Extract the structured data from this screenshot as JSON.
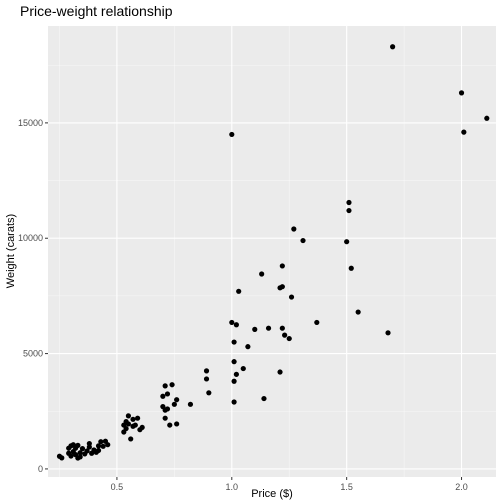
{
  "chart_data": {
    "type": "scatter",
    "title": "Price-weight relationship",
    "xlabel": "Price ($)",
    "ylabel": "Weight (carats)",
    "xlim": [
      0.2,
      2.15
    ],
    "ylim": [
      -350,
      19200
    ],
    "x_ticks": [
      0.5,
      1.0,
      1.5,
      2.0
    ],
    "x_tick_labels": [
      "0.5",
      "1.0",
      "1.5",
      "2.0"
    ],
    "y_ticks": [
      0,
      5000,
      10000,
      15000
    ],
    "y_tick_labels": [
      "0",
      "5000",
      "10000",
      "15000"
    ],
    "grid": true,
    "legend": "none",
    "colors": {
      "panel": "#ebebeb",
      "grid_major": "#ffffff",
      "point": "#000000",
      "tick": "#333333"
    },
    "points": [
      {
        "x": 0.25,
        "y": 550
      },
      {
        "x": 0.26,
        "y": 480
      },
      {
        "x": 0.29,
        "y": 900
      },
      {
        "x": 0.29,
        "y": 680
      },
      {
        "x": 0.3,
        "y": 1000
      },
      {
        "x": 0.3,
        "y": 560
      },
      {
        "x": 0.31,
        "y": 750
      },
      {
        "x": 0.31,
        "y": 1050
      },
      {
        "x": 0.32,
        "y": 620
      },
      {
        "x": 0.32,
        "y": 900
      },
      {
        "x": 0.33,
        "y": 470
      },
      {
        "x": 0.33,
        "y": 1020
      },
      {
        "x": 0.34,
        "y": 700
      },
      {
        "x": 0.34,
        "y": 520
      },
      {
        "x": 0.35,
        "y": 880
      },
      {
        "x": 0.36,
        "y": 650
      },
      {
        "x": 0.37,
        "y": 780
      },
      {
        "x": 0.38,
        "y": 1100
      },
      {
        "x": 0.38,
        "y": 950
      },
      {
        "x": 0.39,
        "y": 680
      },
      {
        "x": 0.4,
        "y": 820
      },
      {
        "x": 0.41,
        "y": 720
      },
      {
        "x": 0.42,
        "y": 1000
      },
      {
        "x": 0.42,
        "y": 800
      },
      {
        "x": 0.43,
        "y": 1180
      },
      {
        "x": 0.44,
        "y": 980
      },
      {
        "x": 0.45,
        "y": 1200
      },
      {
        "x": 0.46,
        "y": 1050
      },
      {
        "x": 0.53,
        "y": 1900
      },
      {
        "x": 0.53,
        "y": 1600
      },
      {
        "x": 0.54,
        "y": 2050
      },
      {
        "x": 0.54,
        "y": 1750
      },
      {
        "x": 0.55,
        "y": 2300
      },
      {
        "x": 0.55,
        "y": 1950
      },
      {
        "x": 0.56,
        "y": 1300
      },
      {
        "x": 0.57,
        "y": 2150
      },
      {
        "x": 0.57,
        "y": 1850
      },
      {
        "x": 0.58,
        "y": 1900
      },
      {
        "x": 0.59,
        "y": 2200
      },
      {
        "x": 0.6,
        "y": 1700
      },
      {
        "x": 0.61,
        "y": 1800
      },
      {
        "x": 0.7,
        "y": 3150
      },
      {
        "x": 0.7,
        "y": 2700
      },
      {
        "x": 0.71,
        "y": 2550
      },
      {
        "x": 0.71,
        "y": 2200
      },
      {
        "x": 0.71,
        "y": 3600
      },
      {
        "x": 0.72,
        "y": 3250
      },
      {
        "x": 0.72,
        "y": 2600
      },
      {
        "x": 0.73,
        "y": 1900
      },
      {
        "x": 0.74,
        "y": 3650
      },
      {
        "x": 0.75,
        "y": 2800
      },
      {
        "x": 0.76,
        "y": 3000
      },
      {
        "x": 0.76,
        "y": 1950
      },
      {
        "x": 0.82,
        "y": 2800
      },
      {
        "x": 0.89,
        "y": 4250
      },
      {
        "x": 0.89,
        "y": 3900
      },
      {
        "x": 0.9,
        "y": 3300
      },
      {
        "x": 1.0,
        "y": 14500
      },
      {
        "x": 1.0,
        "y": 6350
      },
      {
        "x": 1.01,
        "y": 5500
      },
      {
        "x": 1.01,
        "y": 4650
      },
      {
        "x": 1.01,
        "y": 3800
      },
      {
        "x": 1.01,
        "y": 2900
      },
      {
        "x": 1.02,
        "y": 6250
      },
      {
        "x": 1.02,
        "y": 4100
      },
      {
        "x": 1.03,
        "y": 7700
      },
      {
        "x": 1.05,
        "y": 4350
      },
      {
        "x": 1.07,
        "y": 5300
      },
      {
        "x": 1.1,
        "y": 6050
      },
      {
        "x": 1.13,
        "y": 8450
      },
      {
        "x": 1.14,
        "y": 3050
      },
      {
        "x": 1.16,
        "y": 6100
      },
      {
        "x": 1.21,
        "y": 7850
      },
      {
        "x": 1.21,
        "y": 4200
      },
      {
        "x": 1.22,
        "y": 8800
      },
      {
        "x": 1.22,
        "y": 6100
      },
      {
        "x": 1.22,
        "y": 7900
      },
      {
        "x": 1.23,
        "y": 5800
      },
      {
        "x": 1.25,
        "y": 5650
      },
      {
        "x": 1.26,
        "y": 7450
      },
      {
        "x": 1.27,
        "y": 10400
      },
      {
        "x": 1.31,
        "y": 9900
      },
      {
        "x": 1.37,
        "y": 6350
      },
      {
        "x": 1.5,
        "y": 9850
      },
      {
        "x": 1.51,
        "y": 11550
      },
      {
        "x": 1.51,
        "y": 11200
      },
      {
        "x": 1.52,
        "y": 8700
      },
      {
        "x": 1.55,
        "y": 6800
      },
      {
        "x": 1.68,
        "y": 5900
      },
      {
        "x": 1.7,
        "y": 18300
      },
      {
        "x": 2.0,
        "y": 16300
      },
      {
        "x": 2.01,
        "y": 14600
      },
      {
        "x": 2.11,
        "y": 15200
      }
    ]
  }
}
